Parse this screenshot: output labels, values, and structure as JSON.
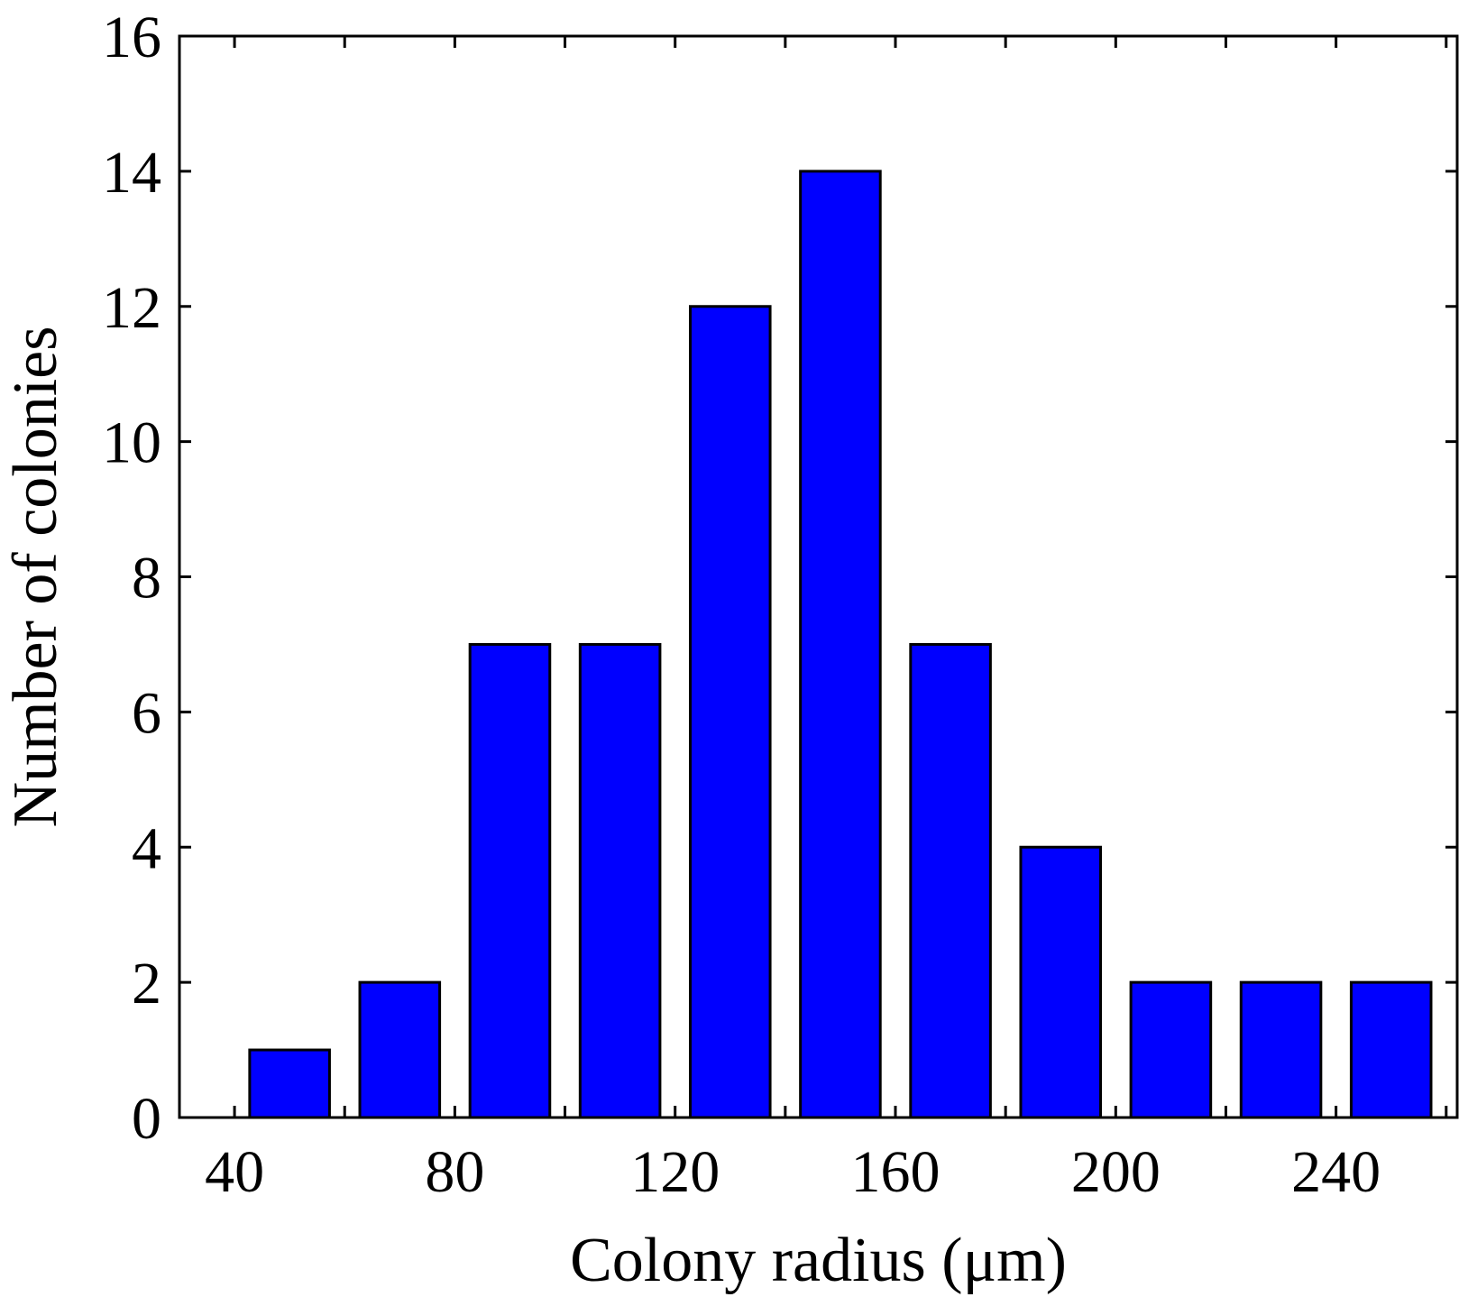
{
  "chart_data": {
    "type": "bar",
    "title": "",
    "xlabel": "Colony radius (μm)",
    "ylabel": "Number of colonies",
    "categories": [
      50,
      70,
      90,
      110,
      130,
      150,
      170,
      190,
      210,
      230,
      250
    ],
    "values": [
      1,
      2,
      7,
      7,
      12,
      14,
      7,
      4,
      2,
      2,
      2
    ],
    "bar_width": 14.5,
    "xlim": [
      30,
      262
    ],
    "ylim": [
      0,
      16
    ],
    "xticks": [
      40,
      80,
      120,
      160,
      200,
      240
    ],
    "xtick_minor": [
      60,
      100,
      140,
      180,
      220,
      260
    ],
    "yticks": [
      0,
      2,
      4,
      6,
      8,
      10,
      12,
      14,
      16
    ],
    "bar_color": "#0000ff",
    "edge_color": "#000000",
    "grid": false,
    "legend": "none"
  }
}
